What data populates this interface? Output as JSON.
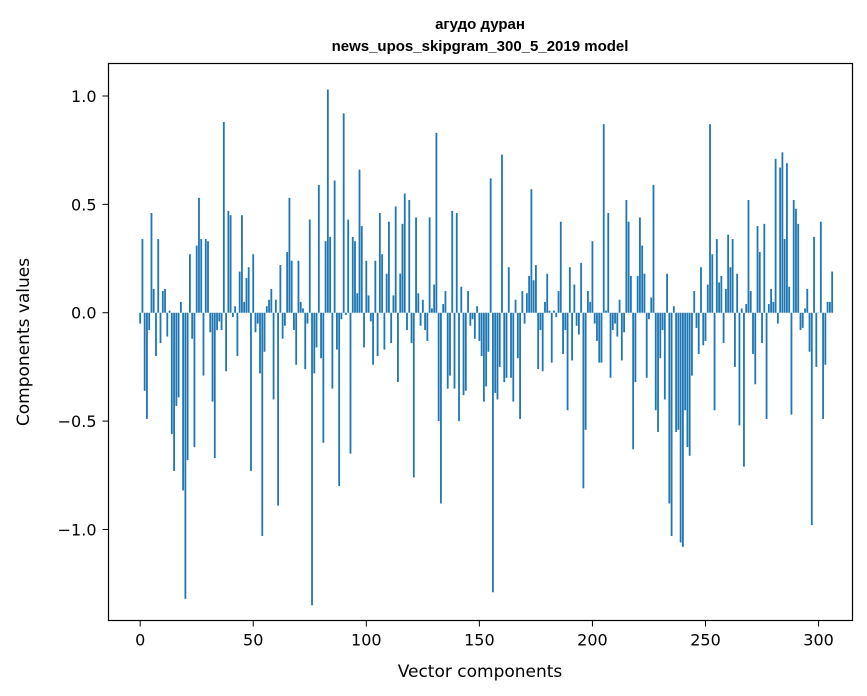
{
  "chart_data": {
    "type": "bar",
    "title": "агудо дуран",
    "subtitle": "news_upos_skipgram_300_5_2019 model",
    "xlabel": "Vector components",
    "ylabel": "Components values",
    "xlim": [
      -14,
      315
    ],
    "ylim": [
      -1.42,
      1.15
    ],
    "xticks": [
      0,
      50,
      100,
      150,
      200,
      250,
      300
    ],
    "xtick_labels": [
      "0",
      "50",
      "100",
      "150",
      "200",
      "250",
      "300"
    ],
    "yticks": [
      -1.0,
      -0.5,
      0.0,
      0.5,
      1.0
    ],
    "ytick_labels": [
      "−1.0",
      "−0.5",
      "0.0",
      "0.5",
      "1.0"
    ],
    "bar_color": "#1f77b4",
    "values": [
      -0.05,
      0.34,
      -0.36,
      -0.49,
      -0.08,
      0.46,
      0.11,
      -0.2,
      0.34,
      -0.14,
      0.1,
      0.11,
      -0.11,
      0.01,
      -0.56,
      -0.73,
      -0.43,
      -0.39,
      0.05,
      -0.82,
      -1.32,
      -0.68,
      0.27,
      -0.12,
      -0.62,
      0.31,
      0.53,
      0.34,
      -0.29,
      0.34,
      0.33,
      -0.09,
      -0.41,
      -0.67,
      -0.08,
      -0.04,
      -0.08,
      0.88,
      -0.27,
      0.47,
      0.45,
      -0.02,
      0.03,
      -0.2,
      0.19,
      0.45,
      0.05,
      0.16,
      0.21,
      -0.73,
      0.27,
      -0.09,
      -0.05,
      -0.28,
      -1.03,
      -0.18,
      0.03,
      0.06,
      0.11,
      -0.4,
      0.06,
      -0.89,
      0.22,
      -0.12,
      -0.06,
      0.28,
      0.53,
      0.24,
      -0.08,
      -0.24,
      0.24,
      0.05,
      0.02,
      -0.26,
      -0.05,
      0.43,
      -1.35,
      -0.28,
      -0.16,
      0.59,
      -0.21,
      -0.6,
      0.33,
      1.03,
      0.35,
      -0.35,
      0.61,
      -0.17,
      -0.8,
      -0.03,
      0.92,
      -0.01,
      0.43,
      -0.65,
      0.35,
      0.33,
      0.09,
      0.66,
      0.4,
      -0.16,
      0.24,
      0.08,
      -0.04,
      -0.24,
      0.24,
      -0.2,
      0.46,
      0.27,
      -0.17,
      0.18,
      0.42,
      -0.14,
      0.08,
      0.49,
      -0.32,
      0.18,
      0.41,
      0.55,
      -0.08,
      0.52,
      -0.14,
      -0.76,
      0.44,
      0.09,
      -0.06,
      0.06,
      -0.08,
      -0.13,
      0.44,
      0.02,
      0.13,
      0.83,
      -0.5,
      -0.88,
      0.04,
      0.1,
      -0.35,
      -0.29,
      0.47,
      -0.35,
      0.46,
      -0.5,
      0.12,
      -0.38,
      -0.36,
      0.1,
      -0.06,
      -0.03,
      -0.12,
      0.03,
      -0.13,
      -0.2,
      -0.41,
      -0.34,
      -0.18,
      0.62,
      -1.29,
      -0.37,
      -0.4,
      -0.25,
      0.73,
      -0.32,
      -0.3,
      0.21,
      -0.3,
      -0.41,
      0.06,
      -0.21,
      -0.49,
      0.1,
      -0.05,
      0.09,
      0.17,
      0.57,
      0.15,
      0.22,
      -0.26,
      -0.08,
      -0.27,
      0.05,
      0.18,
      0.01,
      -0.23,
      0.01,
      -0.02,
      0.1,
      0.42,
      -0.19,
      -0.08,
      -0.45,
      0.21,
      -0.22,
      0.13,
      -0.06,
      -0.1,
      0.23,
      -0.81,
      -0.54,
      0.1,
      0.05,
      0.33,
      -0.05,
      -0.13,
      -0.23,
      -0.23,
      0.87,
      0.01,
      0.46,
      -0.3,
      -0.08,
      -0.05,
      -0.11,
      0.06,
      -0.22,
      -0.09,
      0.52,
      0.42,
      0.17,
      -0.63,
      -0.32,
      0.17,
      0.44,
      0.31,
      0.18,
      -0.3,
      -0.03,
      0.07,
      0.59,
      -0.45,
      -0.55,
      -0.21,
      -0.08,
      -0.4,
      0.18,
      -0.88,
      -1.03,
      0.03,
      -0.55,
      -0.54,
      -1.06,
      -1.08,
      -0.45,
      -0.62,
      -0.66,
      -0.29,
      0.1,
      -0.07,
      -0.19,
      0.21,
      -0.15,
      -0.13,
      0.13,
      0.87,
      0.27,
      -0.45,
      0.34,
      0.14,
      0.17,
      -0.14,
      0.11,
      0.36,
      0.21,
      0.34,
      -0.25,
      0.18,
      -0.52,
      0.02,
      -0.71,
      0.04,
      0.52,
      0.1,
      -0.19,
      -0.33,
      0.4,
      0.28,
      -0.14,
      0.41,
      -0.49,
      0.04,
      0.11,
      0.05,
      0.71,
      -0.05,
      0.67,
      0.74,
      0.34,
      0.69,
      0.12,
      -0.47,
      0.52,
      0.48,
      0.41,
      -0.08,
      -0.07,
      0.02,
      0.11,
      -0.18,
      -0.98,
      0.35,
      -0.25,
      0.0,
      0.42,
      -0.49,
      -0.24,
      0.05,
      0.05,
      0.19
    ]
  }
}
